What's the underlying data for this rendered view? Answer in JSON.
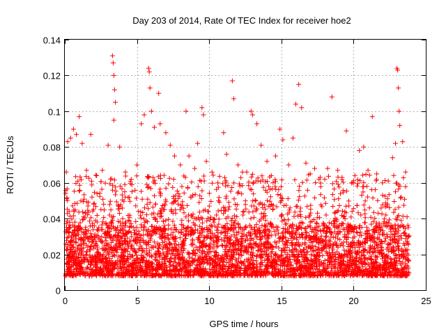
{
  "chart_data": {
    "type": "scatter",
    "title": "Day 203 of 2014, Rate Of TEC Index for receiver hoe2",
    "xlabel": "GPS time / hours",
    "ylabel": "ROTI / TECUs",
    "xlim": [
      0,
      25
    ],
    "ylim": [
      0,
      0.14
    ],
    "xticks": [
      "0",
      "5",
      "10",
      "15",
      "20",
      "25"
    ],
    "yticks": [
      "0",
      "0.02",
      "0.04",
      "0.06",
      "0.08",
      "0.1",
      "0.12",
      "0.14"
    ],
    "grid": true,
    "marker": "+",
    "color": "#ff0000",
    "points": [
      [
        0.1,
        0.066
      ],
      [
        0.2,
        0.083
      ],
      [
        0.4,
        0.085
      ],
      [
        0.6,
        0.09
      ],
      [
        0.8,
        0.087
      ],
      [
        1.0,
        0.097
      ],
      [
        1.2,
        0.082
      ],
      [
        1.5,
        0.067
      ],
      [
        1.8,
        0.087
      ],
      [
        2.2,
        0.064
      ],
      [
        2.6,
        0.067
      ],
      [
        3.0,
        0.081
      ],
      [
        3.3,
        0.131
      ],
      [
        3.35,
        0.127
      ],
      [
        3.4,
        0.12
      ],
      [
        3.45,
        0.112
      ],
      [
        3.5,
        0.105
      ],
      [
        3.4,
        0.095
      ],
      [
        3.8,
        0.08
      ],
      [
        4.2,
        0.066
      ],
      [
        4.6,
        0.062
      ],
      [
        5.0,
        0.07
      ],
      [
        5.3,
        0.093
      ],
      [
        5.5,
        0.098
      ],
      [
        5.8,
        0.124
      ],
      [
        5.85,
        0.122
      ],
      [
        5.9,
        0.113
      ],
      [
        6.0,
        0.1
      ],
      [
        6.2,
        0.091
      ],
      [
        6.5,
        0.11
      ],
      [
        6.6,
        0.093
      ],
      [
        7.0,
        0.088
      ],
      [
        7.3,
        0.081
      ],
      [
        7.6,
        0.075
      ],
      [
        8.0,
        0.07
      ],
      [
        8.4,
        0.1
      ],
      [
        8.6,
        0.075
      ],
      [
        9.0,
        0.068
      ],
      [
        9.2,
        0.082
      ],
      [
        9.5,
        0.102
      ],
      [
        9.6,
        0.098
      ],
      [
        9.8,
        0.072
      ],
      [
        10.2,
        0.066
      ],
      [
        10.6,
        0.06
      ],
      [
        11.0,
        0.088
      ],
      [
        11.2,
        0.076
      ],
      [
        11.6,
        0.117
      ],
      [
        11.7,
        0.107
      ],
      [
        12.0,
        0.07
      ],
      [
        12.3,
        0.066
      ],
      [
        12.6,
        0.066
      ],
      [
        12.9,
        0.1
      ],
      [
        13.0,
        0.098
      ],
      [
        13.3,
        0.093
      ],
      [
        13.6,
        0.081
      ],
      [
        14.0,
        0.072
      ],
      [
        14.3,
        0.064
      ],
      [
        14.6,
        0.075
      ],
      [
        14.9,
        0.09
      ],
      [
        15.1,
        0.084
      ],
      [
        15.5,
        0.07
      ],
      [
        15.8,
        0.085
      ],
      [
        16.0,
        0.104
      ],
      [
        16.2,
        0.115
      ],
      [
        16.4,
        0.102
      ],
      [
        16.7,
        0.071
      ],
      [
        17.0,
        0.065
      ],
      [
        17.3,
        0.068
      ],
      [
        17.6,
        0.062
      ],
      [
        18.0,
        0.062
      ],
      [
        18.2,
        0.068
      ],
      [
        18.5,
        0.108
      ],
      [
        18.9,
        0.067
      ],
      [
        19.2,
        0.063
      ],
      [
        19.5,
        0.089
      ],
      [
        20.0,
        0.06
      ],
      [
        20.4,
        0.078
      ],
      [
        20.7,
        0.08
      ],
      [
        21.0,
        0.067
      ],
      [
        21.3,
        0.097
      ],
      [
        21.6,
        0.065
      ],
      [
        22.0,
        0.06
      ],
      [
        22.4,
        0.061
      ],
      [
        22.7,
        0.074
      ],
      [
        22.9,
        0.082
      ],
      [
        23.0,
        0.124
      ],
      [
        23.05,
        0.123
      ],
      [
        23.1,
        0.113
      ],
      [
        23.15,
        0.1
      ],
      [
        23.2,
        0.092
      ],
      [
        23.4,
        0.083
      ],
      [
        23.6,
        0.066
      ],
      [
        0.3,
        0.044
      ],
      [
        0.7,
        0.038
      ],
      [
        1.3,
        0.041
      ],
      [
        1.9,
        0.036
      ],
      [
        2.5,
        0.045
      ],
      [
        3.1,
        0.042
      ],
      [
        3.7,
        0.047
      ],
      [
        4.4,
        0.039
      ],
      [
        5.1,
        0.044
      ],
      [
        5.7,
        0.048
      ],
      [
        6.3,
        0.04
      ],
      [
        6.9,
        0.045
      ],
      [
        7.5,
        0.043
      ],
      [
        8.1,
        0.046
      ],
      [
        8.7,
        0.052
      ],
      [
        9.3,
        0.049
      ],
      [
        9.9,
        0.044
      ],
      [
        10.5,
        0.042
      ],
      [
        11.1,
        0.046
      ],
      [
        11.8,
        0.048
      ],
      [
        12.4,
        0.044
      ],
      [
        13.1,
        0.047
      ],
      [
        13.8,
        0.043
      ],
      [
        14.4,
        0.045
      ],
      [
        15.0,
        0.05
      ],
      [
        15.6,
        0.046
      ],
      [
        16.3,
        0.044
      ],
      [
        16.9,
        0.041
      ],
      [
        17.5,
        0.043
      ],
      [
        18.1,
        0.042
      ],
      [
        18.7,
        0.039
      ],
      [
        19.3,
        0.041
      ],
      [
        19.9,
        0.044
      ],
      [
        20.5,
        0.042
      ],
      [
        21.1,
        0.046
      ],
      [
        21.7,
        0.043
      ],
      [
        22.3,
        0.047
      ],
      [
        22.9,
        0.055
      ],
      [
        23.3,
        0.052
      ],
      [
        23.7,
        0.041
      ]
    ],
    "dense_band": {
      "x_range": [
        0.05,
        23.85
      ],
      "y_lower": 0.008,
      "y_upper_typ": 0.035
    }
  }
}
